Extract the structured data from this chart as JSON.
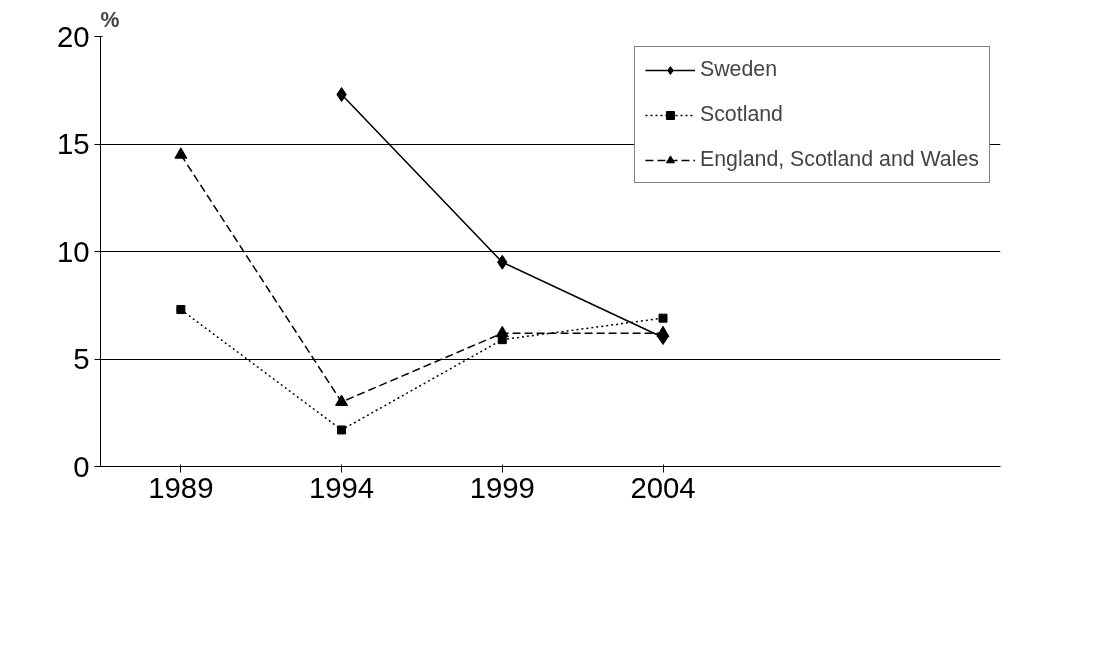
{
  "chart_data": {
    "type": "line",
    "ylabel": "%",
    "categories": [
      "1989",
      "1994",
      "1999",
      "2004"
    ],
    "series": [
      {
        "name": "Sweden",
        "color": "#000000",
        "values": [
          null,
          17.3,
          9.5,
          6.0
        ],
        "marker": "diamond",
        "line_style": "solid"
      },
      {
        "name": "Scotland",
        "color": "#000000",
        "values": [
          7.3,
          1.7,
          5.9,
          6.9
        ],
        "marker": "square",
        "line_style": "dotted"
      },
      {
        "name": "England, Scotland and Wales",
        "color": "#000000",
        "values": [
          14.5,
          3.0,
          6.2,
          6.2
        ],
        "marker": "triangle",
        "line_style": "dashed"
      }
    ],
    "ylim": [
      0,
      20
    ],
    "yticks": [
      0,
      5,
      10,
      15,
      20
    ],
    "grid": "y",
    "legend": "top right"
  }
}
